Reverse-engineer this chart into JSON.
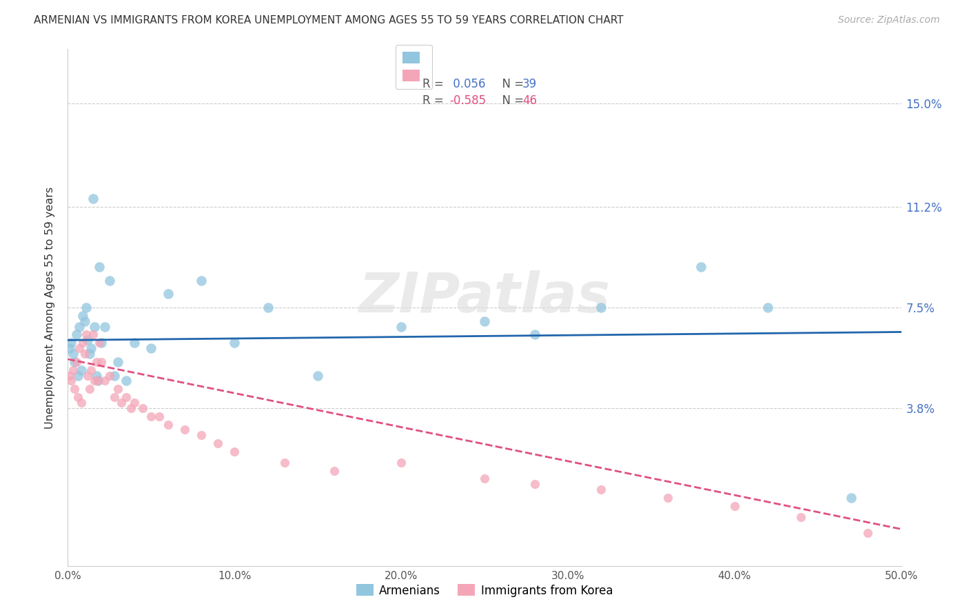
{
  "title": "ARMENIAN VS IMMIGRANTS FROM KOREA UNEMPLOYMENT AMONG AGES 55 TO 59 YEARS CORRELATION CHART",
  "source": "Source: ZipAtlas.com",
  "ylabel": "Unemployment Among Ages 55 to 59 years",
  "ytick_labels": [
    "15.0%",
    "11.2%",
    "7.5%",
    "3.8%"
  ],
  "ytick_values": [
    0.15,
    0.112,
    0.075,
    0.038
  ],
  "xlim": [
    0.0,
    0.5
  ],
  "ylim": [
    -0.02,
    0.17
  ],
  "color_blue": "#92c5de",
  "color_pink": "#f4a6b8",
  "line_blue": "#2166ac",
  "line_pink": "#e05080",
  "watermark": "ZIPatlas",
  "arm_slope": 0.006,
  "arm_intercept": 0.063,
  "kor_slope": -0.125,
  "kor_intercept": 0.056,
  "armenians_x": [
    0.001,
    0.002,
    0.003,
    0.004,
    0.005,
    0.006,
    0.007,
    0.008,
    0.009,
    0.01,
    0.011,
    0.012,
    0.013,
    0.014,
    0.015,
    0.016,
    0.017,
    0.018,
    0.019,
    0.02,
    0.022,
    0.025,
    0.028,
    0.03,
    0.035,
    0.04,
    0.05,
    0.06,
    0.08,
    0.1,
    0.12,
    0.15,
    0.2,
    0.25,
    0.28,
    0.32,
    0.38,
    0.42,
    0.47
  ],
  "armenians_y": [
    0.06,
    0.062,
    0.058,
    0.055,
    0.065,
    0.05,
    0.068,
    0.052,
    0.072,
    0.07,
    0.075,
    0.063,
    0.058,
    0.06,
    0.115,
    0.068,
    0.05,
    0.048,
    0.09,
    0.062,
    0.068,
    0.085,
    0.05,
    0.055,
    0.048,
    0.062,
    0.06,
    0.08,
    0.085,
    0.062,
    0.075,
    0.05,
    0.068,
    0.07,
    0.065,
    0.075,
    0.09,
    0.075,
    0.005
  ],
  "korea_x": [
    0.001,
    0.002,
    0.003,
    0.004,
    0.005,
    0.006,
    0.007,
    0.008,
    0.009,
    0.01,
    0.011,
    0.012,
    0.013,
    0.014,
    0.015,
    0.016,
    0.017,
    0.018,
    0.019,
    0.02,
    0.022,
    0.025,
    0.028,
    0.03,
    0.032,
    0.035,
    0.038,
    0.04,
    0.045,
    0.05,
    0.055,
    0.06,
    0.07,
    0.08,
    0.09,
    0.1,
    0.13,
    0.16,
    0.2,
    0.25,
    0.28,
    0.32,
    0.36,
    0.4,
    0.44,
    0.48
  ],
  "korea_y": [
    0.05,
    0.048,
    0.052,
    0.045,
    0.055,
    0.042,
    0.06,
    0.04,
    0.062,
    0.058,
    0.065,
    0.05,
    0.045,
    0.052,
    0.065,
    0.048,
    0.055,
    0.048,
    0.062,
    0.055,
    0.048,
    0.05,
    0.042,
    0.045,
    0.04,
    0.042,
    0.038,
    0.04,
    0.038,
    0.035,
    0.035,
    0.032,
    0.03,
    0.028,
    0.025,
    0.022,
    0.018,
    0.015,
    0.018,
    0.012,
    0.01,
    0.008,
    0.005,
    0.002,
    -0.002,
    -0.008
  ]
}
